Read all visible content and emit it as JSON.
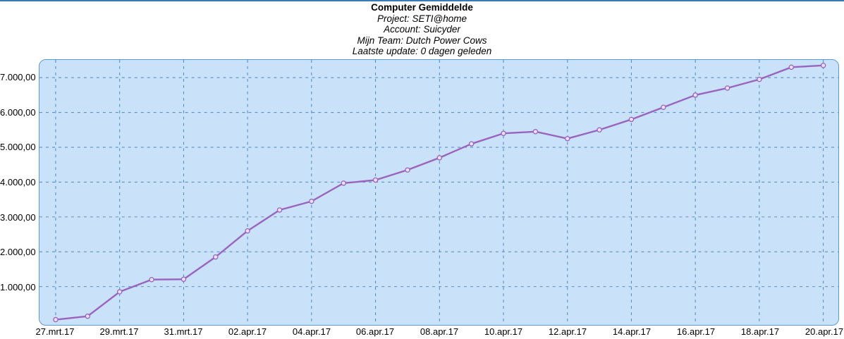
{
  "header": {
    "title": "Computer Gemiddelde",
    "lines": [
      "Project: SETI@home",
      "Account: Suicyder",
      "Mijn Team: Dutch Power Cows",
      "Laatste update: 0 dagen geleden"
    ]
  },
  "chart_data": {
    "type": "line",
    "title": "Computer Gemiddelde",
    "xlabel": "",
    "ylabel": "",
    "grid": "dashed-both",
    "legend_position": "none",
    "x_dates": [
      "27.mrt.17",
      "28.mrt.17",
      "29.mrt.17",
      "30.mrt.17",
      "31.mrt.17",
      "01.apr.17",
      "02.apr.17",
      "03.apr.17",
      "04.apr.17",
      "05.apr.17",
      "06.apr.17",
      "07.apr.17",
      "08.apr.17",
      "09.apr.17",
      "10.apr.17",
      "11.apr.17",
      "12.apr.17",
      "13.apr.17",
      "14.apr.17",
      "15.apr.17",
      "16.apr.17",
      "17.apr.17",
      "18.apr.17",
      "19.apr.17",
      "20.apr.17"
    ],
    "values": [
      50,
      150,
      850,
      1200,
      1210,
      1850,
      2600,
      3200,
      3450,
      3970,
      4060,
      4350,
      4700,
      5100,
      5400,
      5450,
      5250,
      5500,
      5800,
      6150,
      6500,
      6700,
      6950,
      7300,
      7350
    ],
    "x_tick_days": [
      0,
      2,
      4,
      6,
      8,
      10,
      12,
      14,
      16,
      18,
      20,
      22,
      24
    ],
    "x_tick_labels": [
      "27.mrt.17",
      "29.mrt.17",
      "31.mrt.17",
      "02.apr.17",
      "04.apr.17",
      "06.apr.17",
      "08.apr.17",
      "10.apr.17",
      "12.apr.17",
      "14.apr.17",
      "16.apr.17",
      "18.apr.17",
      "20.apr.17"
    ],
    "y_ticks": [
      1000,
      2000,
      3000,
      4000,
      5000,
      6000,
      7000
    ],
    "y_tick_labels": [
      "1.000,00",
      "2.000,00",
      "3.000,00",
      "4.000,00",
      "5.000,00",
      "6.000,00",
      "7.000,00"
    ],
    "ylim": [
      -100,
      7510
    ],
    "colors": {
      "line": "#9a63bf",
      "marker_fill": "#e9e1f4",
      "plot_bg": "#c9e2fa",
      "plot_border": "#5b9bd5",
      "gridline": "#4a86c0",
      "top_rule": "#3a7ab5",
      "text": "#000000"
    }
  }
}
